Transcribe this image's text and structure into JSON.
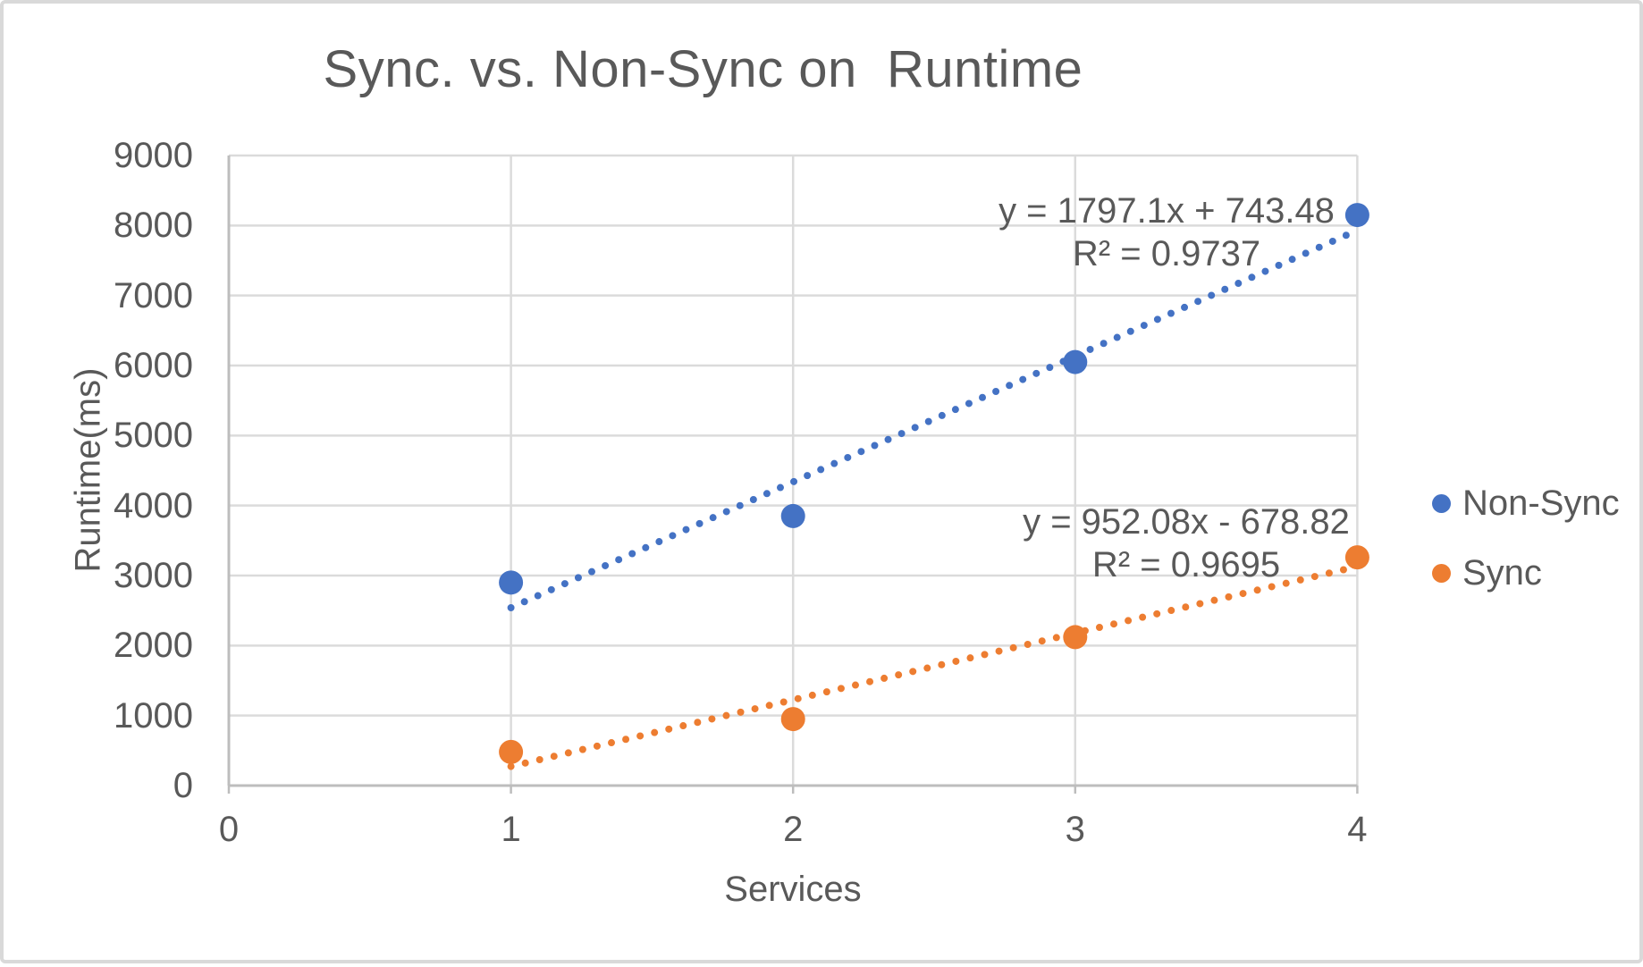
{
  "chart_data": {
    "type": "scatter",
    "title": "Sync. vs. Non-Sync on  Runtime",
    "xlabel": "Services",
    "ylabel": "Runtime(ms)",
    "xlim": [
      0,
      4
    ],
    "ylim": [
      0,
      9000
    ],
    "xticks": [
      0,
      1,
      2,
      3,
      4
    ],
    "yticks": [
      0,
      1000,
      2000,
      3000,
      4000,
      5000,
      6000,
      7000,
      8000,
      9000
    ],
    "grid": true,
    "legend_position": "right-center",
    "series": [
      {
        "name": "Non-Sync",
        "color": "#4472C4",
        "x": [
          1,
          2,
          3,
          4
        ],
        "y": [
          2900,
          3850,
          6050,
          8150
        ],
        "trendline": {
          "type": "linear",
          "style": "dotted",
          "slope": 1797.1,
          "intercept": 743.48,
          "range": [
            1,
            4
          ],
          "equation": "y = 1797.1x + 743.48",
          "r2_label": "R² = 0.9737"
        }
      },
      {
        "name": "Sync",
        "color": "#ED7D31",
        "x": [
          1,
          2,
          3,
          4
        ],
        "y": [
          480,
          950,
          2120,
          3260
        ],
        "trendline": {
          "type": "linear",
          "style": "dotted",
          "slope": 952.08,
          "intercept": -678.82,
          "range": [
            1,
            4
          ],
          "equation": "y = 952.08x - 678.82",
          "r2_label": "R² = 0.9695"
        }
      }
    ],
    "colors": {
      "text": "#595959",
      "gridline": "#DBDBDB",
      "axis": "#BDBDBD",
      "frame_border": "#D9D9D9",
      "background": "#FFFFFF"
    }
  }
}
